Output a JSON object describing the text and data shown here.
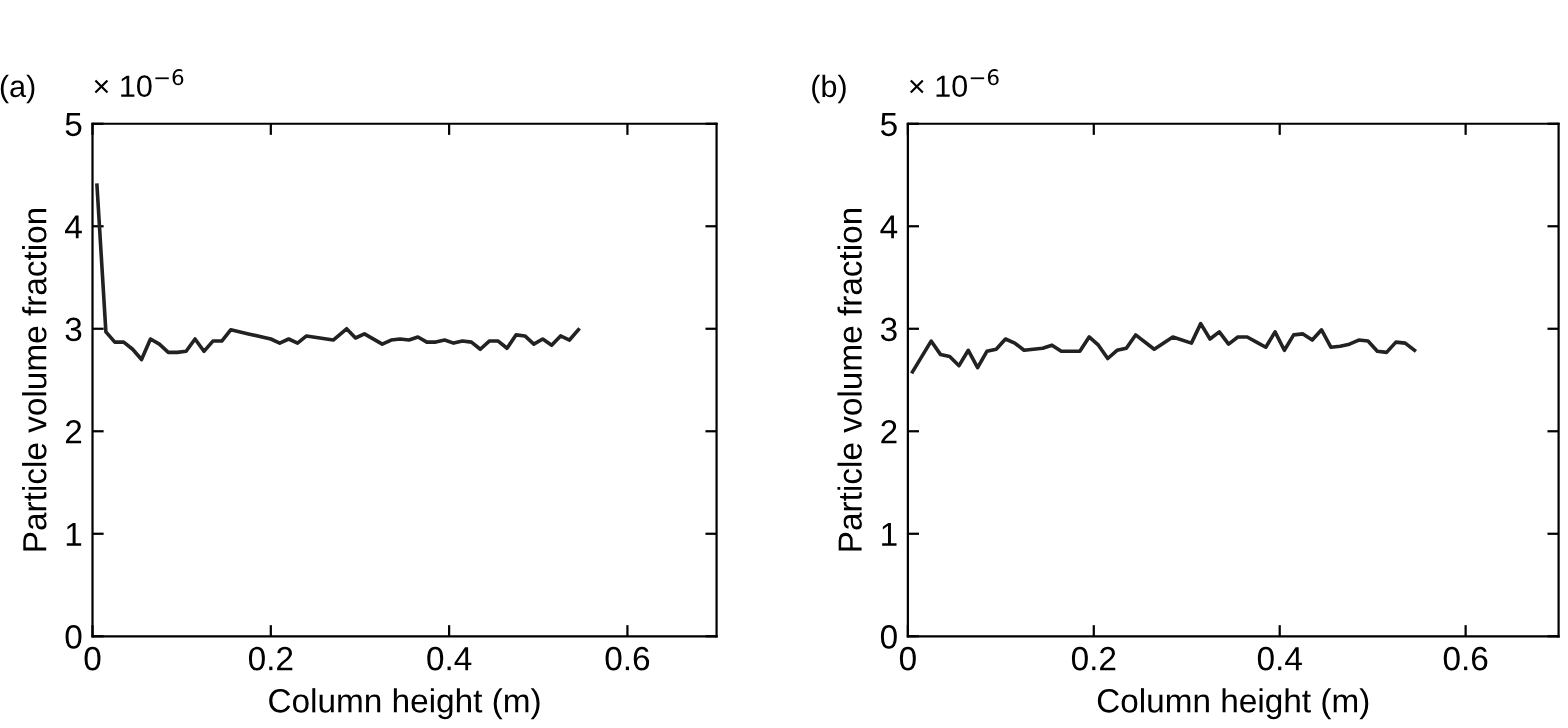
{
  "chart_data": [
    {
      "type": "line",
      "xlabel": "Column height (m)",
      "ylabel": "Particle volume fraction",
      "annotations": [
        "(a)",
        "× 10$^{−6}$"
      ],
      "xlim": [
        0,
        0.7
      ],
      "xticks": [
        0,
        0.2,
        0.4,
        0.6
      ],
      "ylim": [
        0,
        5
      ],
      "yticks": [
        0,
        1,
        2,
        3,
        4,
        5
      ],
      "grid": false,
      "legend": false,
      "series": [
        {
          "color": "#222222",
          "x": [
            0.005,
            0.015,
            0.025,
            0.035,
            0.045,
            0.055,
            0.065,
            0.075,
            0.085,
            0.095,
            0.105,
            0.115,
            0.125,
            0.135,
            0.145,
            0.155,
            0.175,
            0.2,
            0.21,
            0.22,
            0.23,
            0.24,
            0.27,
            0.285,
            0.295,
            0.305,
            0.325,
            0.335,
            0.345,
            0.355,
            0.365,
            0.375,
            0.385,
            0.395,
            0.405,
            0.415,
            0.425,
            0.435,
            0.445,
            0.455,
            0.465,
            0.475,
            0.485,
            0.495,
            0.505,
            0.515,
            0.525,
            0.535,
            0.545
          ],
          "values": [
            4.4,
            2.97,
            2.87,
            2.87,
            2.8,
            2.7,
            2.9,
            2.85,
            2.77,
            2.77,
            2.78,
            2.9,
            2.78,
            2.88,
            2.88,
            2.99,
            2.95,
            2.9,
            2.86,
            2.9,
            2.86,
            2.93,
            2.89,
            3.0,
            2.91,
            2.95,
            2.85,
            2.89,
            2.9,
            2.89,
            2.92,
            2.87,
            2.87,
            2.89,
            2.86,
            2.88,
            2.87,
            2.8,
            2.88,
            2.88,
            2.81,
            2.94,
            2.93,
            2.85,
            2.9,
            2.84,
            2.93,
            2.89,
            2.99
          ]
        }
      ]
    },
    {
      "type": "line",
      "xlabel": "Column height (m)",
      "ylabel": "Particle volume fraction",
      "annotations": [
        "(b)",
        "× 10$^{−6}$"
      ],
      "xlim": [
        0,
        0.7
      ],
      "xticks": [
        0,
        0.2,
        0.4,
        0.6
      ],
      "ylim": [
        0,
        5
      ],
      "yticks": [
        0,
        1,
        2,
        3,
        4,
        5
      ],
      "grid": false,
      "legend": false,
      "series": [
        {
          "color": "#222222",
          "x": [
            0.005,
            0.025,
            0.035,
            0.045,
            0.055,
            0.065,
            0.075,
            0.085,
            0.095,
            0.105,
            0.115,
            0.125,
            0.135,
            0.145,
            0.155,
            0.165,
            0.175,
            0.185,
            0.195,
            0.205,
            0.215,
            0.225,
            0.235,
            0.245,
            0.265,
            0.285,
            0.305,
            0.315,
            0.325,
            0.335,
            0.345,
            0.355,
            0.365,
            0.375,
            0.385,
            0.395,
            0.405,
            0.415,
            0.425,
            0.435,
            0.445,
            0.455,
            0.465,
            0.475,
            0.485,
            0.495,
            0.505,
            0.515,
            0.525,
            0.535,
            0.545
          ],
          "values": [
            2.58,
            2.88,
            2.75,
            2.73,
            2.64,
            2.79,
            2.62,
            2.78,
            2.8,
            2.9,
            2.86,
            2.79,
            2.8,
            2.81,
            2.84,
            2.78,
            2.78,
            2.78,
            2.92,
            2.84,
            2.71,
            2.79,
            2.81,
            2.94,
            2.8,
            2.92,
            2.86,
            3.05,
            2.9,
            2.97,
            2.85,
            2.92,
            2.92,
            2.87,
            2.82,
            2.97,
            2.79,
            2.94,
            2.95,
            2.89,
            2.99,
            2.82,
            2.83,
            2.85,
            2.89,
            2.88,
            2.78,
            2.77,
            2.87,
            2.86,
            2.79
          ]
        }
      ]
    }
  ]
}
